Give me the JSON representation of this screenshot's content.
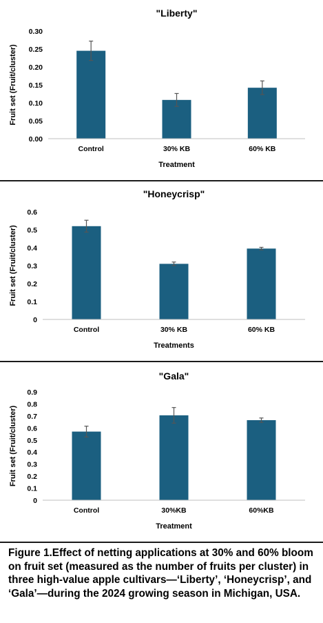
{
  "chart_data": [
    {
      "type": "bar",
      "title": "\"Liberty\"",
      "xlabel": "Treatment",
      "ylabel": "Fruit set (Fruit/cluster)",
      "categories": [
        "Control",
        "30% KB",
        "60% KB"
      ],
      "values": [
        0.245,
        0.108,
        0.142
      ],
      "errors": [
        0.027,
        0.018,
        0.019
      ],
      "ylim": [
        0,
        0.3
      ],
      "yticks": [
        "0.00",
        "0.05",
        "0.10",
        "0.15",
        "0.20",
        "0.25",
        "0.30"
      ],
      "grid": false,
      "color": "#1b5f80"
    },
    {
      "type": "bar",
      "title": "\"Honeycrisp\"",
      "xlabel": "Treatments",
      "ylabel": "Fruit set (Fruit/cluster)",
      "categories": [
        "Control",
        "30% KB",
        "60% KB"
      ],
      "values": [
        0.52,
        0.31,
        0.395
      ],
      "errors": [
        0.033,
        0.01,
        0.007
      ],
      "ylim": [
        0,
        0.6
      ],
      "yticks": [
        "0",
        "0.1",
        "0.2",
        "0.3",
        "0.4",
        "0.5",
        "0.6"
      ],
      "grid": false,
      "color": "#1b5f80"
    },
    {
      "type": "bar",
      "title": "\"Gala\"",
      "xlabel": "Treatment",
      "ylabel": "Fruit set (Fruit/cluster)",
      "categories": [
        "Control",
        "30%KB",
        "60%KB"
      ],
      "values": [
        0.57,
        0.705,
        0.665
      ],
      "errors": [
        0.045,
        0.065,
        0.018
      ],
      "ylim": [
        0,
        0.9
      ],
      "yticks": [
        "0",
        "0.1",
        "0.2",
        "0.3",
        "0.4",
        "0.5",
        "0.6",
        "0.7",
        "0.8",
        "0.9"
      ],
      "grid": false,
      "color": "#1b5f80"
    }
  ],
  "caption": "Figure 1.Effect of netting applications at 30% and 60% bloom on fruit set (measured as the number of fruits per cluster) in three high-value apple cultivars—‘Liberty’, ‘Honeycrisp’, and ‘Gala’—during the 2024 growing season in Michigan, USA."
}
